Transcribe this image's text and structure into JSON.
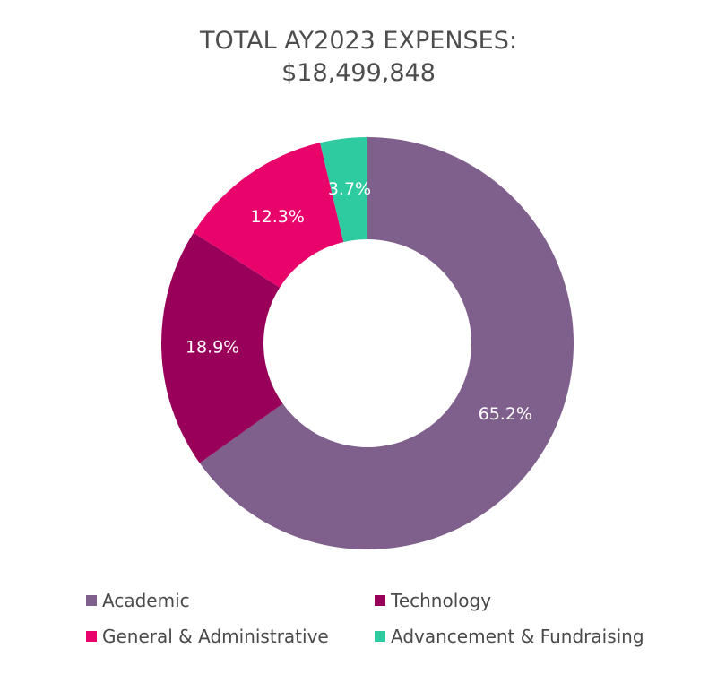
{
  "chart_data": {
    "type": "pie",
    "title": [
      "TOTAL AY2023 EXPENSES:",
      "$18,499,848"
    ],
    "categories": [
      "Academic",
      "Technology",
      "General & Administrative",
      "Advancement & Fundraising"
    ],
    "values": [
      65.2,
      18.9,
      12.3,
      3.7
    ],
    "value_labels": [
      "65.2%",
      "18.9%",
      "12.3%",
      "3.7%"
    ],
    "colors": [
      "#7f5f8c",
      "#98005a",
      "#e8046b",
      "#2fcba0"
    ],
    "legend_position": "bottom",
    "donut": true
  }
}
